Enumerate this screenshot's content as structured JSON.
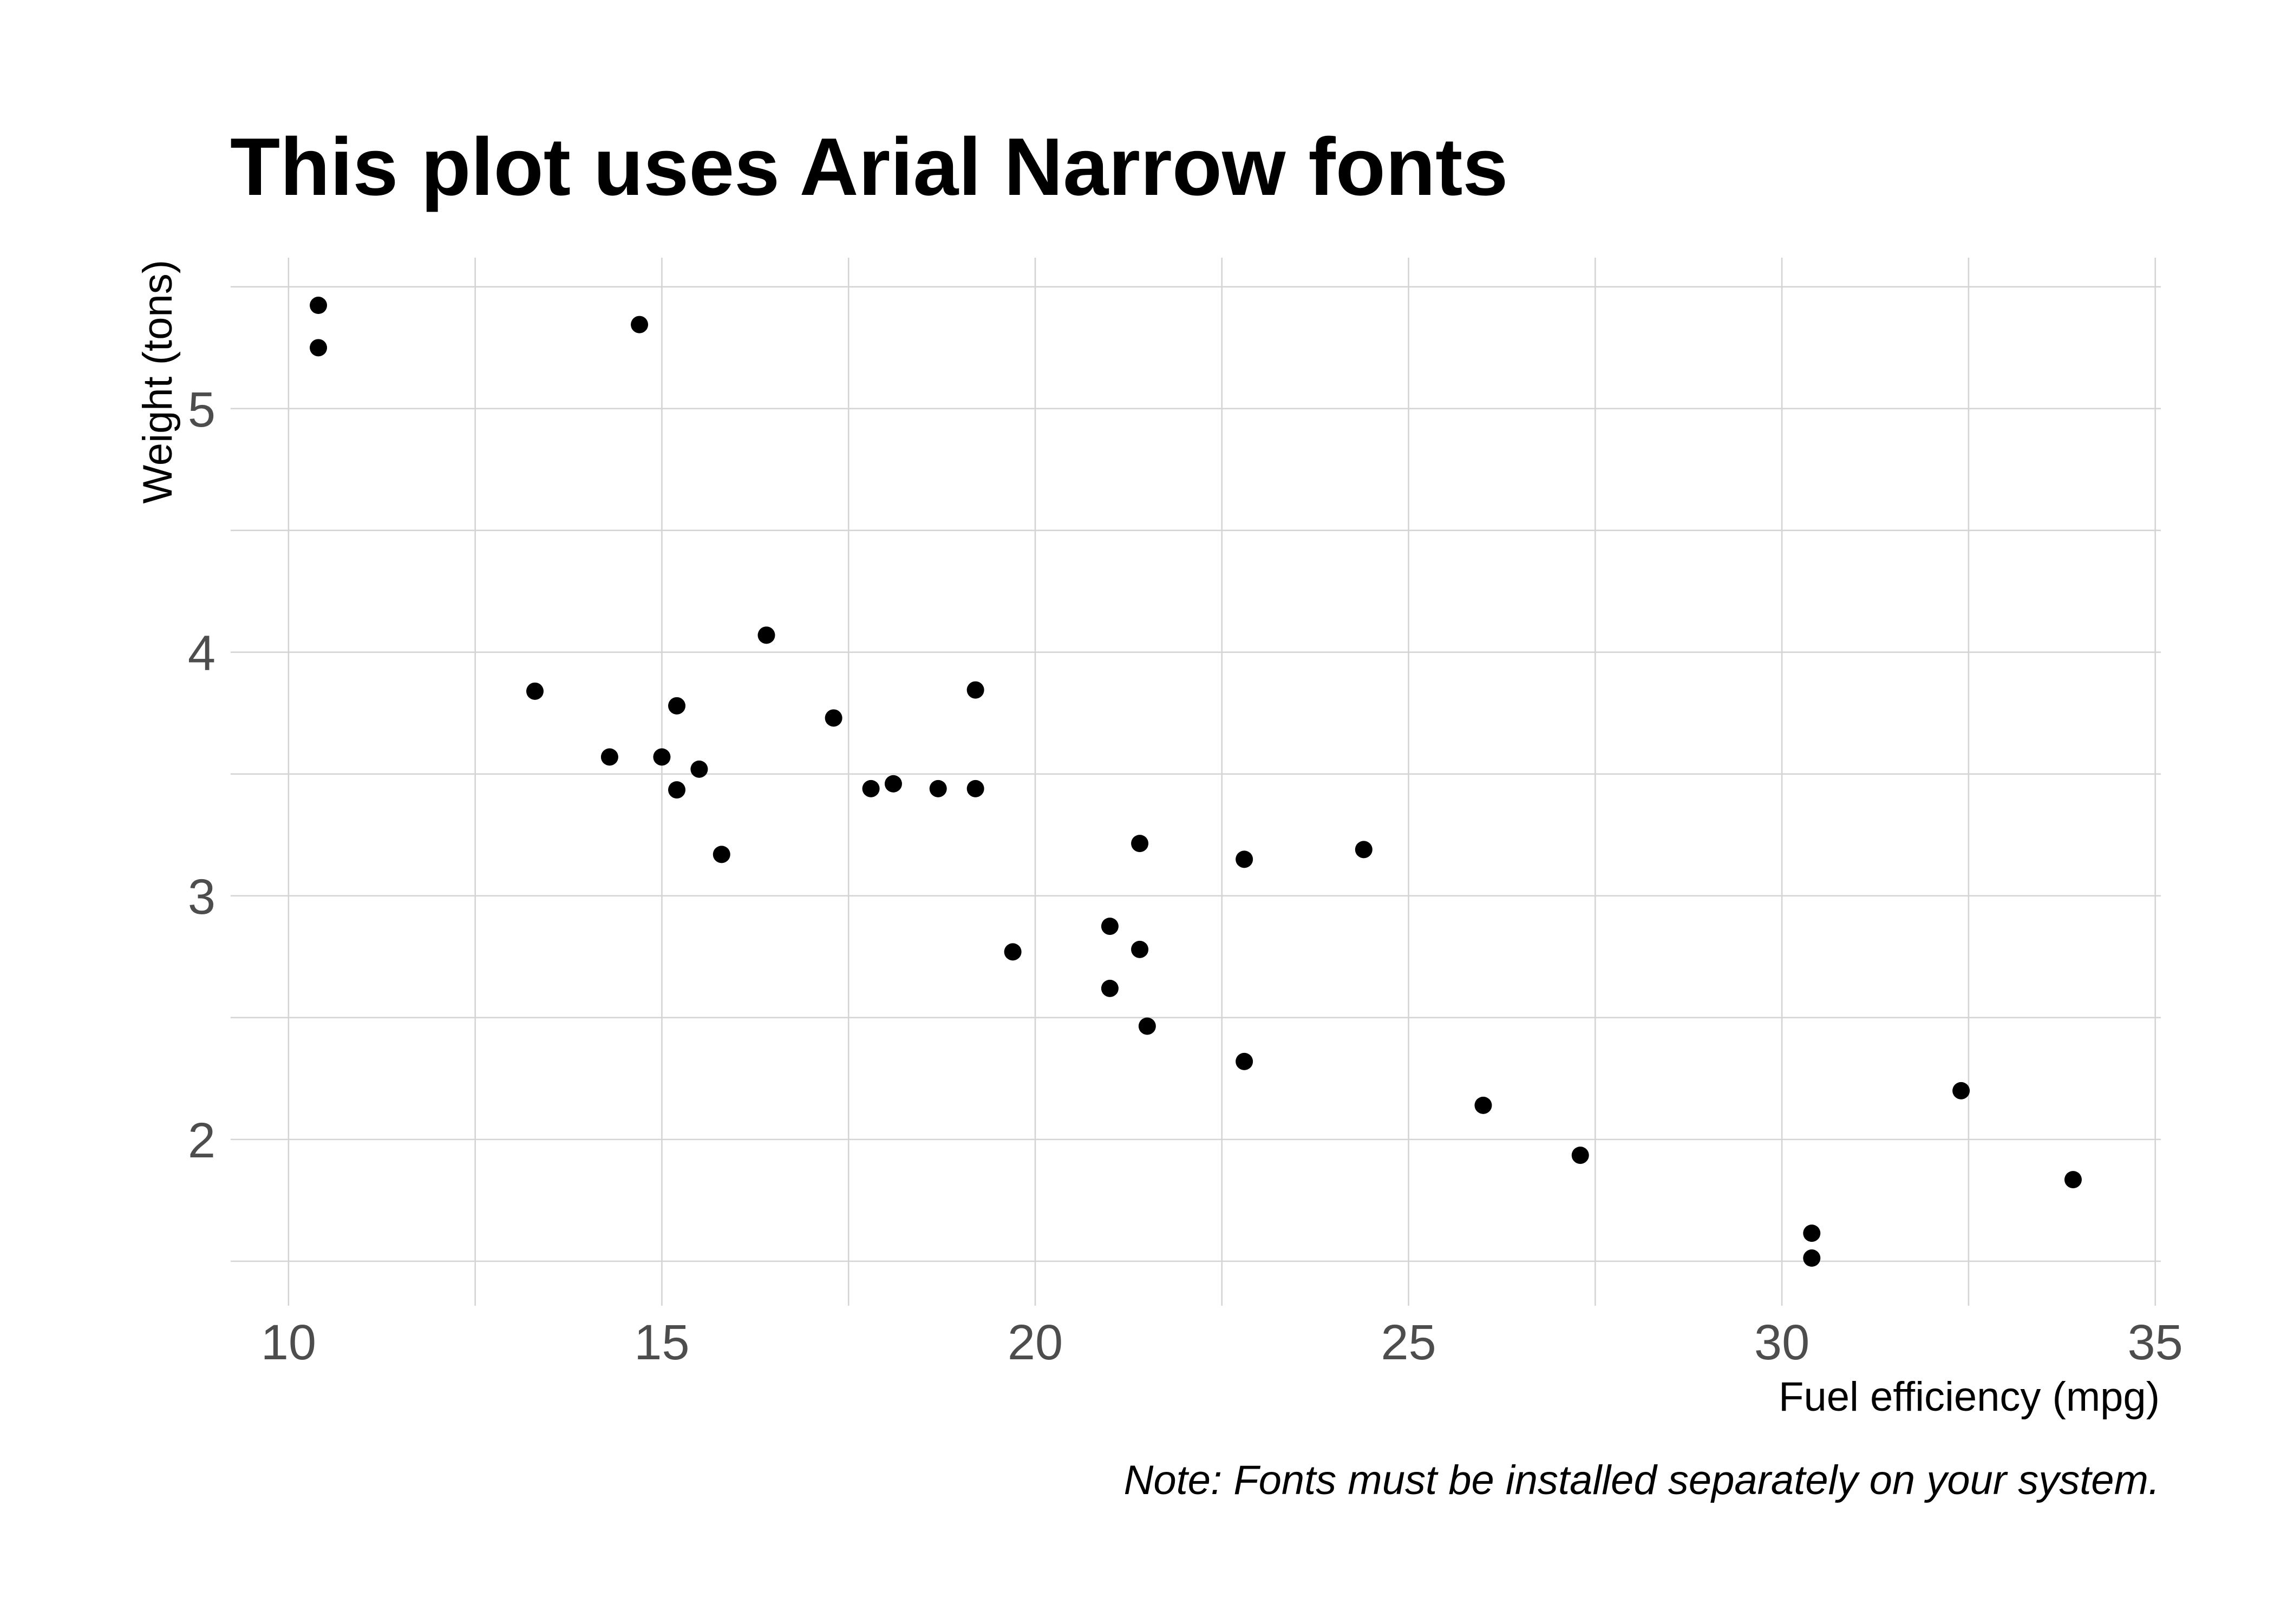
{
  "chart_data": {
    "type": "scatter",
    "title": "This plot uses Arial Narrow fonts",
    "xlabel": "Fuel efficiency (mpg)",
    "ylabel": "Weight (tons)",
    "caption": "Note: Fonts must be installed separately on your system.",
    "x_ticks": [
      10,
      15,
      20,
      25,
      30,
      35
    ],
    "y_ticks": [
      2,
      3,
      4,
      5
    ],
    "xlim": [
      9.225,
      35.075
    ],
    "ylim": [
      1.3175,
      5.6196
    ],
    "grid": true,
    "legend": "none",
    "series": [
      {
        "x": [
          21.0,
          21.0,
          22.8,
          21.4,
          18.7,
          18.1,
          14.3,
          24.4,
          22.8,
          19.2,
          17.8,
          16.4,
          17.3,
          15.2,
          10.4,
          10.4,
          14.7,
          32.4,
          30.4,
          33.9,
          21.5,
          15.5,
          15.2,
          13.3,
          19.2,
          27.3,
          26.0,
          30.4,
          15.8,
          19.7,
          15.0,
          21.4
        ],
        "y": [
          2.62,
          2.875,
          2.32,
          3.215,
          3.44,
          3.46,
          3.57,
          3.19,
          3.15,
          3.44,
          3.44,
          4.07,
          3.73,
          3.78,
          5.25,
          5.424,
          5.345,
          2.2,
          1.615,
          1.835,
          2.465,
          3.52,
          3.435,
          3.84,
          3.845,
          1.935,
          2.14,
          1.513,
          3.17,
          2.77,
          3.57,
          2.78
        ]
      }
    ]
  },
  "colors": {
    "background": "#ffffff",
    "grid": "#d4d4d4",
    "point": "#000000",
    "text": "#000000",
    "tick_label": "#4d4d4d"
  }
}
